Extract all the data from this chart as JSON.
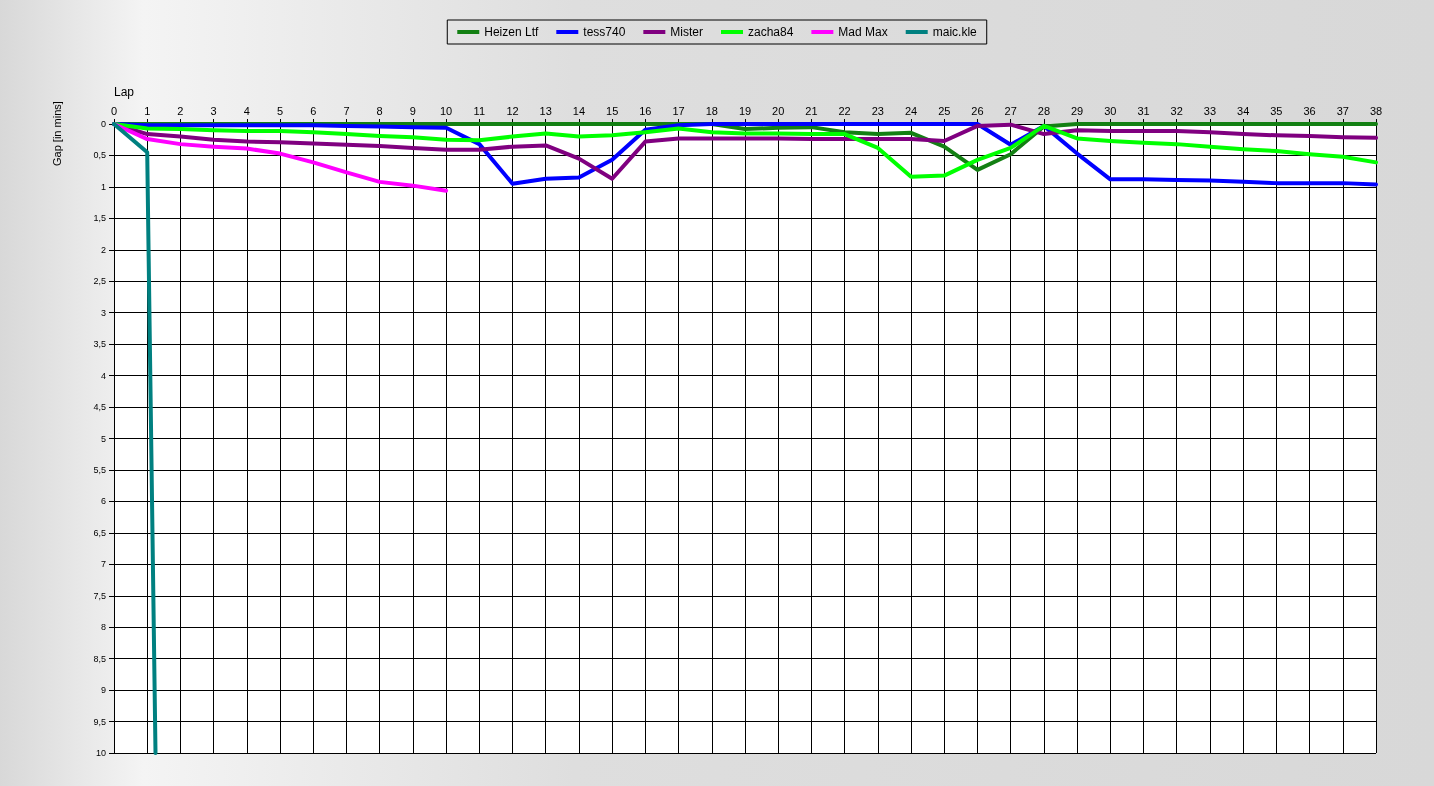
{
  "chart_data": {
    "type": "line",
    "xlabel": "Lap",
    "ylabel": "Gap [in mins]",
    "legend": "top",
    "grid": true,
    "marker": "none",
    "line_style": "solid",
    "x": [
      0,
      1,
      2,
      3,
      4,
      5,
      6,
      7,
      8,
      9,
      10,
      11,
      12,
      13,
      14,
      15,
      16,
      17,
      18,
      19,
      20,
      21,
      22,
      23,
      24,
      25,
      26,
      27,
      28,
      29,
      30,
      31,
      32,
      33,
      34,
      35,
      36,
      37,
      38
    ],
    "xlim": [
      0,
      38
    ],
    "xticks": [
      0,
      1,
      2,
      3,
      4,
      5,
      6,
      7,
      8,
      9,
      10,
      11,
      12,
      13,
      14,
      15,
      16,
      17,
      18,
      19,
      20,
      21,
      22,
      23,
      24,
      25,
      26,
      27,
      28,
      29,
      30,
      31,
      32,
      33,
      34,
      35,
      36,
      37,
      38
    ],
    "ylim": [
      10,
      0
    ],
    "yticks": [
      0,
      {
        "value": 0.5,
        "label": "0,5"
      },
      1,
      {
        "value": 1.5,
        "label": "1,5"
      },
      2,
      {
        "value": 2.5,
        "label": "2,5"
      },
      3,
      {
        "value": 3.5,
        "label": "3,5"
      },
      4,
      {
        "value": 4.5,
        "label": "4,5"
      },
      5,
      {
        "value": 5.5,
        "label": "5,5"
      },
      6,
      {
        "value": 6.5,
        "label": "6,5"
      },
      7,
      {
        "value": 7.5,
        "label": "7,5"
      },
      8,
      {
        "value": 8.5,
        "label": "8,5"
      },
      9,
      {
        "value": 9.5,
        "label": "9,5"
      },
      10
    ],
    "series": [
      {
        "name": "Heizen Ltf",
        "color": "#138013",
        "values": [
          0,
          0,
          0,
          0,
          0,
          0,
          0,
          0,
          0,
          0,
          0,
          0,
          0,
          0,
          0,
          0,
          0,
          0,
          0,
          0.08,
          0.06,
          0.05,
          0.13,
          0.16,
          0.14,
          0.36,
          0.73,
          0.48,
          0.04,
          0,
          0,
          0,
          0,
          0,
          0,
          0,
          0,
          0,
          0
        ]
      },
      {
        "name": "tess740",
        "color": "#0000ff",
        "values": [
          0,
          0.02,
          0.02,
          0.02,
          0.02,
          0.02,
          0.02,
          0.03,
          0.04,
          0.05,
          0.06,
          0.32,
          0.95,
          0.87,
          0.85,
          0.57,
          0.09,
          0.02,
          0,
          0,
          0,
          0,
          0,
          0,
          0,
          0,
          0,
          0.33,
          0.03,
          0.47,
          0.88,
          0.88,
          0.89,
          0.9,
          0.92,
          0.94,
          0.94,
          0.94,
          0.96
        ]
      },
      {
        "name": "Mister",
        "color": "#800080",
        "values": [
          0,
          0.16,
          0.2,
          0.25,
          0.28,
          0.29,
          0.31,
          0.33,
          0.35,
          0.38,
          0.41,
          0.41,
          0.36,
          0.34,
          0.55,
          0.87,
          0.28,
          0.23,
          0.23,
          0.23,
          0.23,
          0.24,
          0.24,
          0.24,
          0.24,
          0.27,
          0.03,
          0.01,
          0.16,
          0.1,
          0.11,
          0.11,
          0.11,
          0.13,
          0.16,
          0.18,
          0.19,
          0.21,
          0.22
        ]
      },
      {
        "name": "zacha84",
        "color": "#00ff00",
        "values": [
          0,
          0.07,
          0.08,
          0.1,
          0.11,
          0.11,
          0.13,
          0.16,
          0.19,
          0.21,
          0.25,
          0.26,
          0.2,
          0.15,
          0.2,
          0.18,
          0.13,
          0.07,
          0.13,
          0.15,
          0.15,
          0.16,
          0.16,
          0.38,
          0.84,
          0.82,
          0.57,
          0.38,
          0.03,
          0.23,
          0.27,
          0.3,
          0.32,
          0.36,
          0.4,
          0.43,
          0.48,
          0.52,
          0.61
        ]
      },
      {
        "name": "Mad Max",
        "color": "#ff00ff",
        "x": [
          0,
          1,
          2,
          3,
          4,
          5,
          6,
          7,
          8,
          9,
          10
        ],
        "values": [
          0,
          0.24,
          0.32,
          0.36,
          0.39,
          0.47,
          0.61,
          0.77,
          0.92,
          0.98,
          1.06
        ]
      },
      {
        "name": "maic.kle",
        "color": "#008080",
        "x": [
          0,
          1,
          1.25
        ],
        "values": [
          0,
          0.45,
          10
        ]
      }
    ]
  }
}
